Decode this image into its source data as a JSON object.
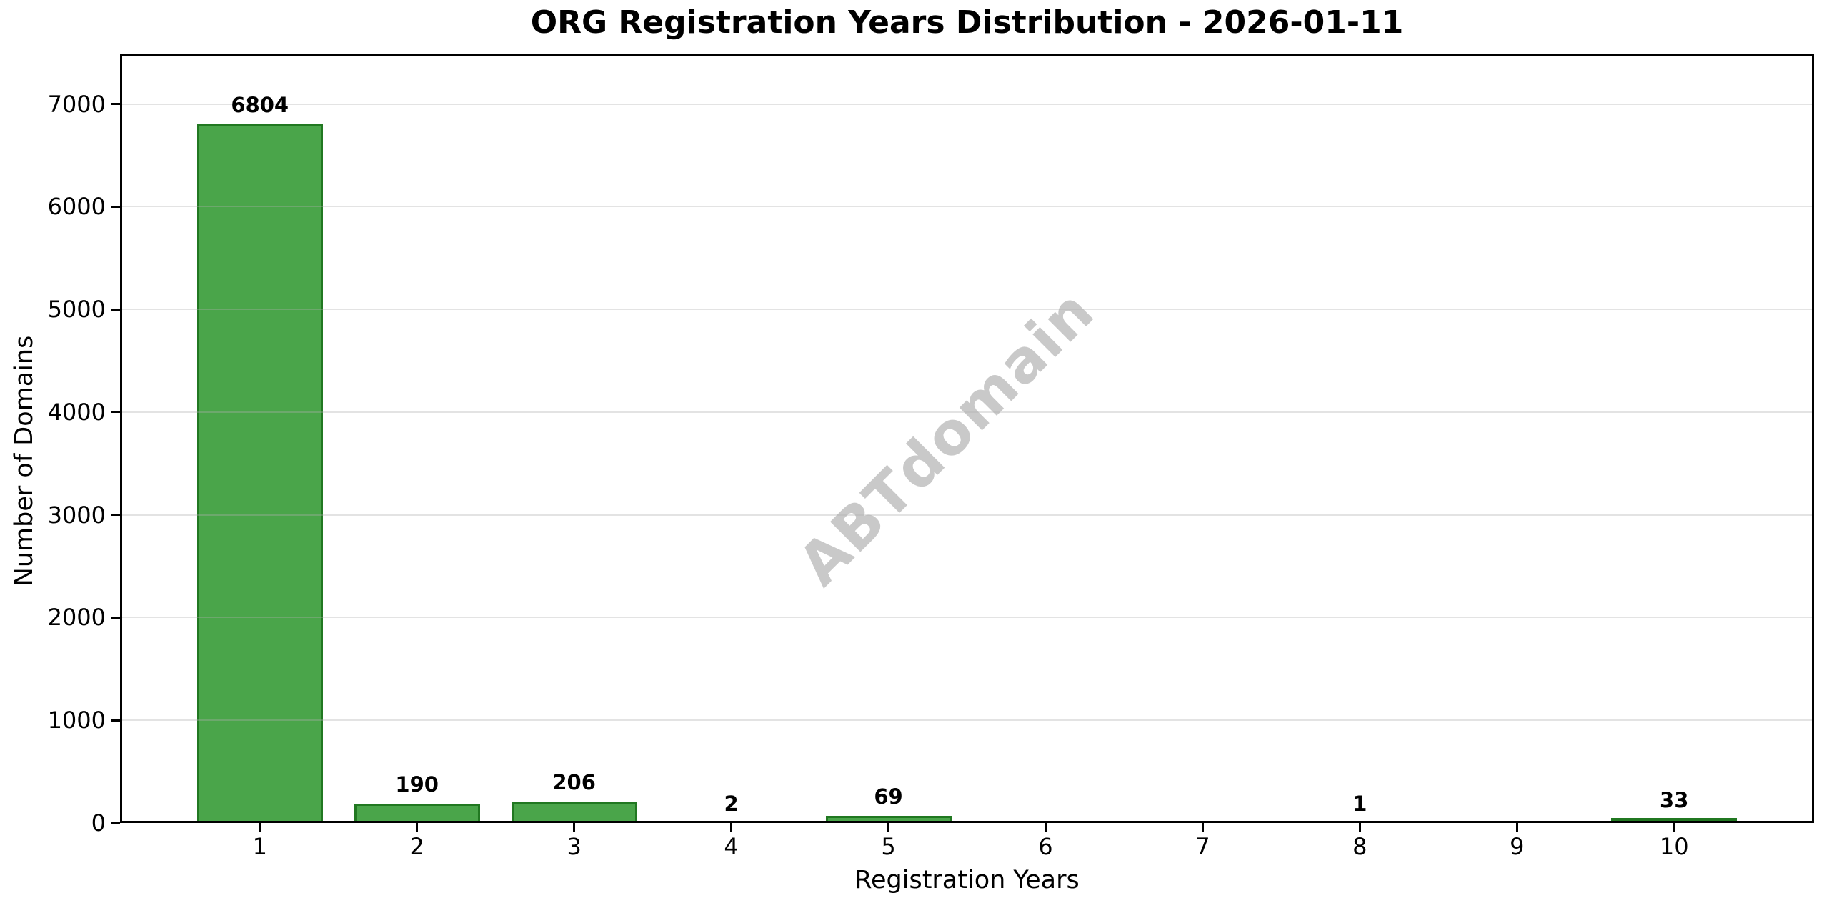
{
  "chart_data": {
    "type": "bar",
    "title": "ORG Registration Years Distribution - 2026-01-11",
    "xlabel": "Registration Years",
    "ylabel": "Number of Domains",
    "watermark": "ABTdomain",
    "categories": [
      "1",
      "2",
      "3",
      "4",
      "5",
      "6",
      "7",
      "8",
      "9",
      "10"
    ],
    "values": [
      6804,
      190,
      206,
      2,
      69,
      0,
      0,
      1,
      0,
      33
    ],
    "bar_labels": [
      "6804",
      "190",
      "206",
      "2",
      "69",
      "",
      "",
      "1",
      "",
      "33"
    ],
    "y_ticks": [
      0,
      1000,
      2000,
      3000,
      4000,
      5000,
      6000,
      7000
    ],
    "ylim": [
      0,
      7484
    ],
    "xlim": [
      0.11,
      10.89
    ],
    "bar_width": 0.8,
    "grid": "horizontal-only, drawn over bars",
    "legend": "none",
    "colors": {
      "bar_fill": "#4aa54a",
      "bar_edge": "#217821",
      "grid": "rgba(176,176,176,0.35)",
      "spine": "#000000",
      "text": "#000000",
      "watermark": "#c9c9c9",
      "background": "#ffffff"
    }
  }
}
